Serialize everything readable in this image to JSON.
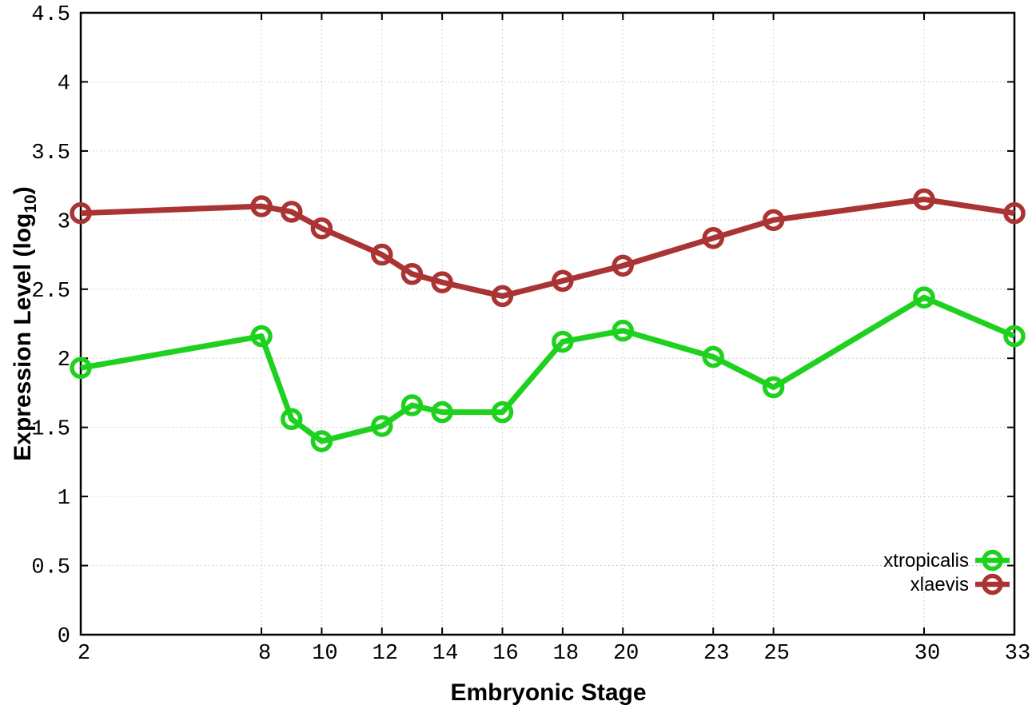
{
  "chart_data": {
    "type": "line",
    "title": "",
    "xlabel": "Embryonic Stage",
    "ylabel": {
      "main": "Expression Level (log",
      "sub": "10",
      "end": ")"
    },
    "x": [
      2,
      8,
      9,
      10,
      12,
      13,
      14,
      16,
      18,
      20,
      23,
      25,
      30,
      33
    ],
    "series": [
      {
        "name": "xtropicalis",
        "color": "#1fd11f",
        "marker": "open-circle",
        "values": [
          1.93,
          2.16,
          1.56,
          1.4,
          1.51,
          1.66,
          1.61,
          1.61,
          2.12,
          2.2,
          2.01,
          1.79,
          2.44,
          2.16
        ]
      },
      {
        "name": "xlaevis",
        "color": "#aa3333",
        "marker": "open-circle",
        "values": [
          3.05,
          3.1,
          3.06,
          2.94,
          2.75,
          2.61,
          2.55,
          2.45,
          2.56,
          2.67,
          2.87,
          3.0,
          3.15,
          3.05
        ]
      }
    ],
    "xticks": [
      2,
      8,
      10,
      12,
      14,
      16,
      18,
      20,
      23,
      25,
      30,
      33
    ],
    "yticks": [
      0,
      0.5,
      1,
      1.5,
      2,
      2.5,
      3,
      3.5,
      4,
      4.5
    ],
    "xlim": [
      2,
      33
    ],
    "ylim": [
      0,
      4.5
    ],
    "grid": true,
    "legend_position": "bottom-right",
    "legend": [
      "xtropicalis",
      "xlaevis"
    ]
  },
  "colors": {
    "background": "#ffffff",
    "axis": "#000000",
    "grid": "#c0c0c0",
    "xtropicalis": "#1fd11f",
    "xlaevis": "#aa3333"
  }
}
